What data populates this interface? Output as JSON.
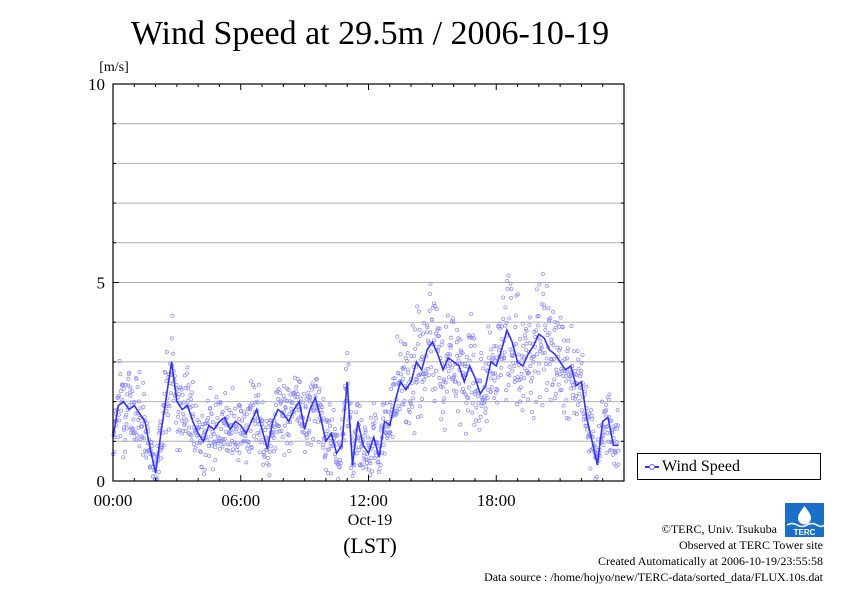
{
  "chart_data": {
    "type": "scatter",
    "title": "Wind Speed at 29.5m / 2006-10-19",
    "ylabel": "[m/s]",
    "xlabel": "(LST)",
    "x_date_label": "Oct-19",
    "ylim": [
      0,
      10
    ],
    "xlim": [
      "00:00",
      "24:00"
    ],
    "y_ticks": [
      "0",
      "5",
      "10"
    ],
    "x_ticks": [
      "00:00",
      "06:00",
      "12:00",
      "18:00"
    ],
    "grid": true,
    "legend_position": "right",
    "series": [
      {
        "name": "Wind Speed",
        "color": "#3333ee",
        "scatter_color": "#8888ff",
        "x_hours": [
          0.0,
          0.25,
          0.5,
          0.75,
          1.0,
          1.25,
          1.5,
          1.75,
          2.0,
          2.25,
          2.5,
          2.75,
          3.0,
          3.25,
          3.5,
          3.75,
          4.0,
          4.25,
          4.5,
          4.75,
          5.0,
          5.25,
          5.5,
          5.75,
          6.0,
          6.25,
          6.5,
          6.75,
          7.0,
          7.25,
          7.5,
          7.75,
          8.0,
          8.25,
          8.5,
          8.75,
          9.0,
          9.25,
          9.5,
          9.75,
          10.0,
          10.25,
          10.5,
          10.75,
          11.0,
          11.25,
          11.5,
          11.75,
          12.0,
          12.25,
          12.5,
          12.75,
          13.0,
          13.25,
          13.5,
          13.75,
          14.0,
          14.25,
          14.5,
          14.75,
          15.0,
          15.25,
          15.5,
          15.75,
          16.0,
          16.25,
          16.5,
          16.75,
          17.0,
          17.25,
          17.5,
          17.75,
          18.0,
          18.25,
          18.5,
          18.75,
          19.0,
          19.25,
          19.5,
          19.75,
          20.0,
          20.25,
          20.5,
          20.75,
          21.0,
          21.25,
          21.5,
          21.75,
          22.0,
          22.25,
          22.5,
          22.75,
          23.0,
          23.25,
          23.5,
          23.75
        ],
        "values": [
          1.1,
          1.9,
          2.0,
          1.8,
          1.9,
          1.7,
          1.5,
          0.8,
          0.2,
          1.2,
          2.1,
          3.0,
          2.0,
          1.8,
          1.9,
          1.5,
          1.2,
          1.0,
          1.4,
          1.3,
          1.5,
          1.6,
          1.3,
          1.5,
          1.4,
          1.2,
          1.5,
          1.8,
          1.3,
          0.8,
          1.5,
          1.8,
          1.7,
          1.5,
          1.8,
          2.0,
          1.3,
          1.8,
          2.1,
          1.6,
          1.0,
          1.2,
          0.7,
          0.9,
          2.5,
          0.4,
          1.5,
          0.9,
          0.7,
          1.1,
          0.6,
          1.5,
          1.4,
          2.0,
          2.5,
          2.3,
          2.5,
          3.0,
          2.8,
          3.3,
          3.5,
          3.2,
          2.8,
          3.1,
          3.0,
          2.9,
          2.5,
          2.9,
          2.6,
          2.2,
          2.4,
          3.0,
          2.9,
          3.3,
          3.8,
          3.5,
          3.0,
          2.9,
          3.2,
          3.4,
          3.7,
          3.6,
          3.3,
          3.2,
          3.0,
          2.8,
          2.9,
          2.4,
          2.5,
          1.6,
          1.0,
          0.4,
          1.5,
          1.6,
          0.9,
          0.9
        ]
      }
    ]
  },
  "credits": {
    "copyright": "©TERC, Univ. Tsukuba",
    "observed": "Observed at TERC Tower site",
    "created": "Created Automatically at 2006-10-19/23:55:58",
    "source": "Data source : /home/hojyo/new/TERC-data/sorted_data/FLUX.10s.dat",
    "logo_text": "TERC"
  }
}
